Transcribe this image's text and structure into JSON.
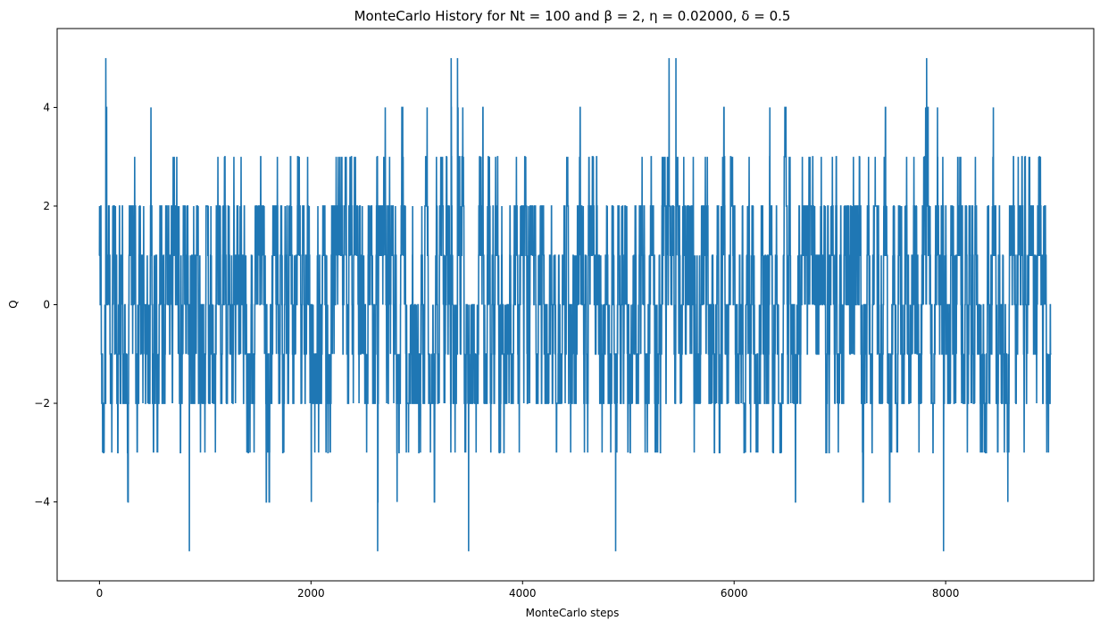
{
  "chart_data": {
    "type": "line",
    "title": "MonteCarlo History for Nt = 100 and  β = 2, η = 0.02000, δ = 0.5",
    "xlabel": "MonteCarlo steps",
    "ylabel": "Q",
    "xlim": [
      -400,
      9400
    ],
    "ylim": [
      -5.6,
      5.6
    ],
    "xticks": [
      0,
      2000,
      4000,
      6000,
      8000
    ],
    "xtick_labels": [
      "0",
      "2000",
      "4000",
      "6000",
      "8000"
    ],
    "yticks": [
      -4,
      -2,
      0,
      2,
      4
    ],
    "ytick_labels": [
      "−4",
      "−2",
      "0",
      "2",
      "4"
    ],
    "grid": false,
    "series": [
      {
        "color": "#1f77b4",
        "n_steps": 9000,
        "x_start": 0,
        "x_step": 1,
        "values_description_note": "",
        "y_min": -5,
        "y_max": 5,
        "visible_extremes": [
          {
            "x": 60,
            "y": 5
          },
          {
            "x": 3325,
            "y": 5
          },
          {
            "x": 3385,
            "y": 5
          },
          {
            "x": 5385,
            "y": 5
          },
          {
            "x": 5450,
            "y": 5
          },
          {
            "x": 7820,
            "y": 5
          },
          {
            "x": 850,
            "y": -5
          },
          {
            "x": 2630,
            "y": -5
          },
          {
            "x": 3490,
            "y": -5
          },
          {
            "x": 4880,
            "y": -5
          },
          {
            "x": 7980,
            "y": -5
          }
        ]
      }
    ]
  }
}
